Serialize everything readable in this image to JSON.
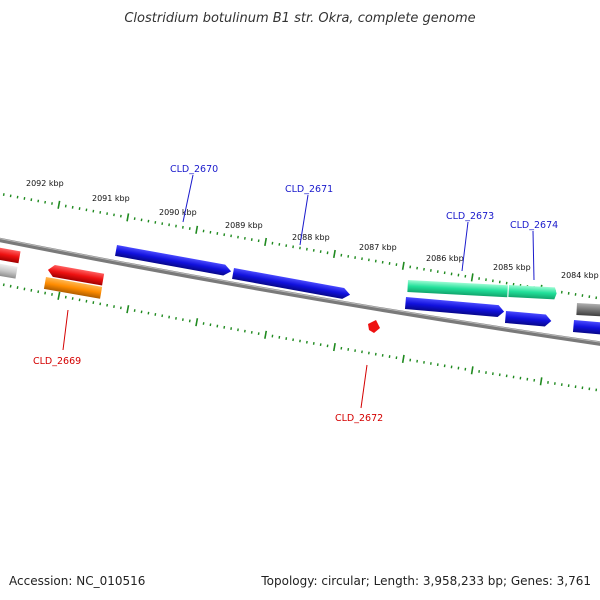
{
  "title": "Clostridium botulinum B1 str. Okra, complete genome",
  "footer": {
    "accession": "Accession: NC_010516",
    "summary": "Topology: circular; Length: 3,958,233 bp; Genes: 3,761"
  },
  "colors": {
    "backbone": "#7a7a7a",
    "tick": "#1f8a1f",
    "label_forward": "#1a1acc",
    "label_reverse": "#d40000",
    "blue": "#1111dd",
    "red": "#ee1111",
    "orange": "#ff8c00",
    "teal": "#22e09a",
    "gray": "#888888",
    "lightgray": "#c8c8c8"
  },
  "scale_labels": [
    "2092 kbp",
    "2091 kbp",
    "2090 kbp",
    "2089 kbp",
    "2088 kbp",
    "2087 kbp",
    "2086 kbp",
    "2085 kbp",
    "2084 kbp"
  ],
  "gene_labels": [
    {
      "id": "forward-1",
      "text": "CLD_2670",
      "strand": "forward"
    },
    {
      "id": "forward-2",
      "text": "CLD_2671",
      "strand": "forward"
    },
    {
      "id": "forward-3",
      "text": "CLD_2673",
      "strand": "forward"
    },
    {
      "id": "forward-4",
      "text": "CLD_2674",
      "strand": "forward"
    },
    {
      "id": "reverse-1",
      "text": "CLD_2669",
      "strand": "reverse"
    },
    {
      "id": "reverse-2",
      "text": "CLD_2672",
      "strand": "reverse"
    }
  ]
}
